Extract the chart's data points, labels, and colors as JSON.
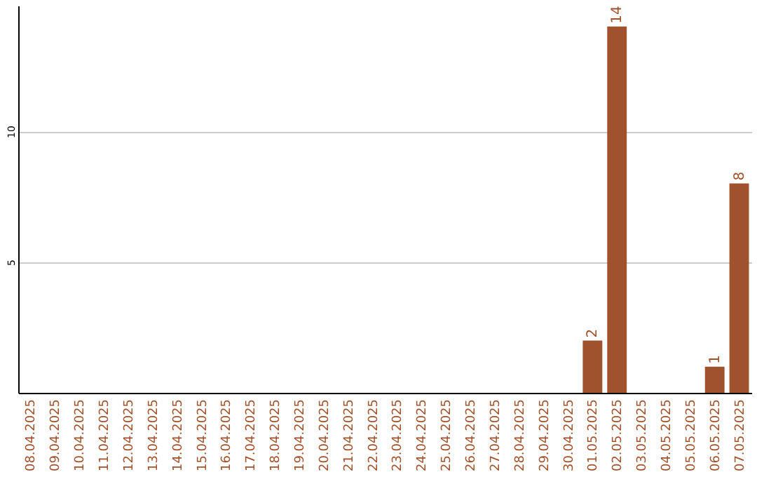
{
  "chart_data": {
    "type": "bar",
    "categories": [
      "08.04.2025",
      "09.04.2025",
      "10.04.2025",
      "11.04.2025",
      "12.04.2025",
      "13.04.2025",
      "14.04.2025",
      "15.04.2025",
      "16.04.2025",
      "17.04.2025",
      "18.04.2025",
      "19.04.2025",
      "20.04.2025",
      "21.04.2025",
      "22.04.2025",
      "23.04.2025",
      "24.04.2025",
      "25.04.2025",
      "26.04.2025",
      "27.04.2025",
      "28.04.2025",
      "29.04.2025",
      "30.04.2025",
      "01.05.2025",
      "02.05.2025",
      "03.05.2025",
      "04.05.2025",
      "05.05.2025",
      "06.05.2025",
      "07.05.2025"
    ],
    "values": [
      0,
      0,
      0,
      0,
      0,
      0,
      0,
      0,
      0,
      0,
      0,
      0,
      0,
      0,
      0,
      0,
      0,
      0,
      0,
      0,
      0,
      0,
      0,
      2,
      14,
      0,
      0,
      0,
      1,
      8
    ],
    "value_labels": [
      null,
      null,
      null,
      null,
      null,
      null,
      null,
      null,
      null,
      null,
      null,
      null,
      null,
      null,
      null,
      null,
      null,
      null,
      null,
      null,
      null,
      null,
      null,
      "2",
      "14",
      null,
      null,
      null,
      "1",
      "8"
    ],
    "color": "#a0522d",
    "ylim": [
      0,
      14.8
    ],
    "yticks": [
      5,
      10
    ],
    "grid": "y"
  }
}
